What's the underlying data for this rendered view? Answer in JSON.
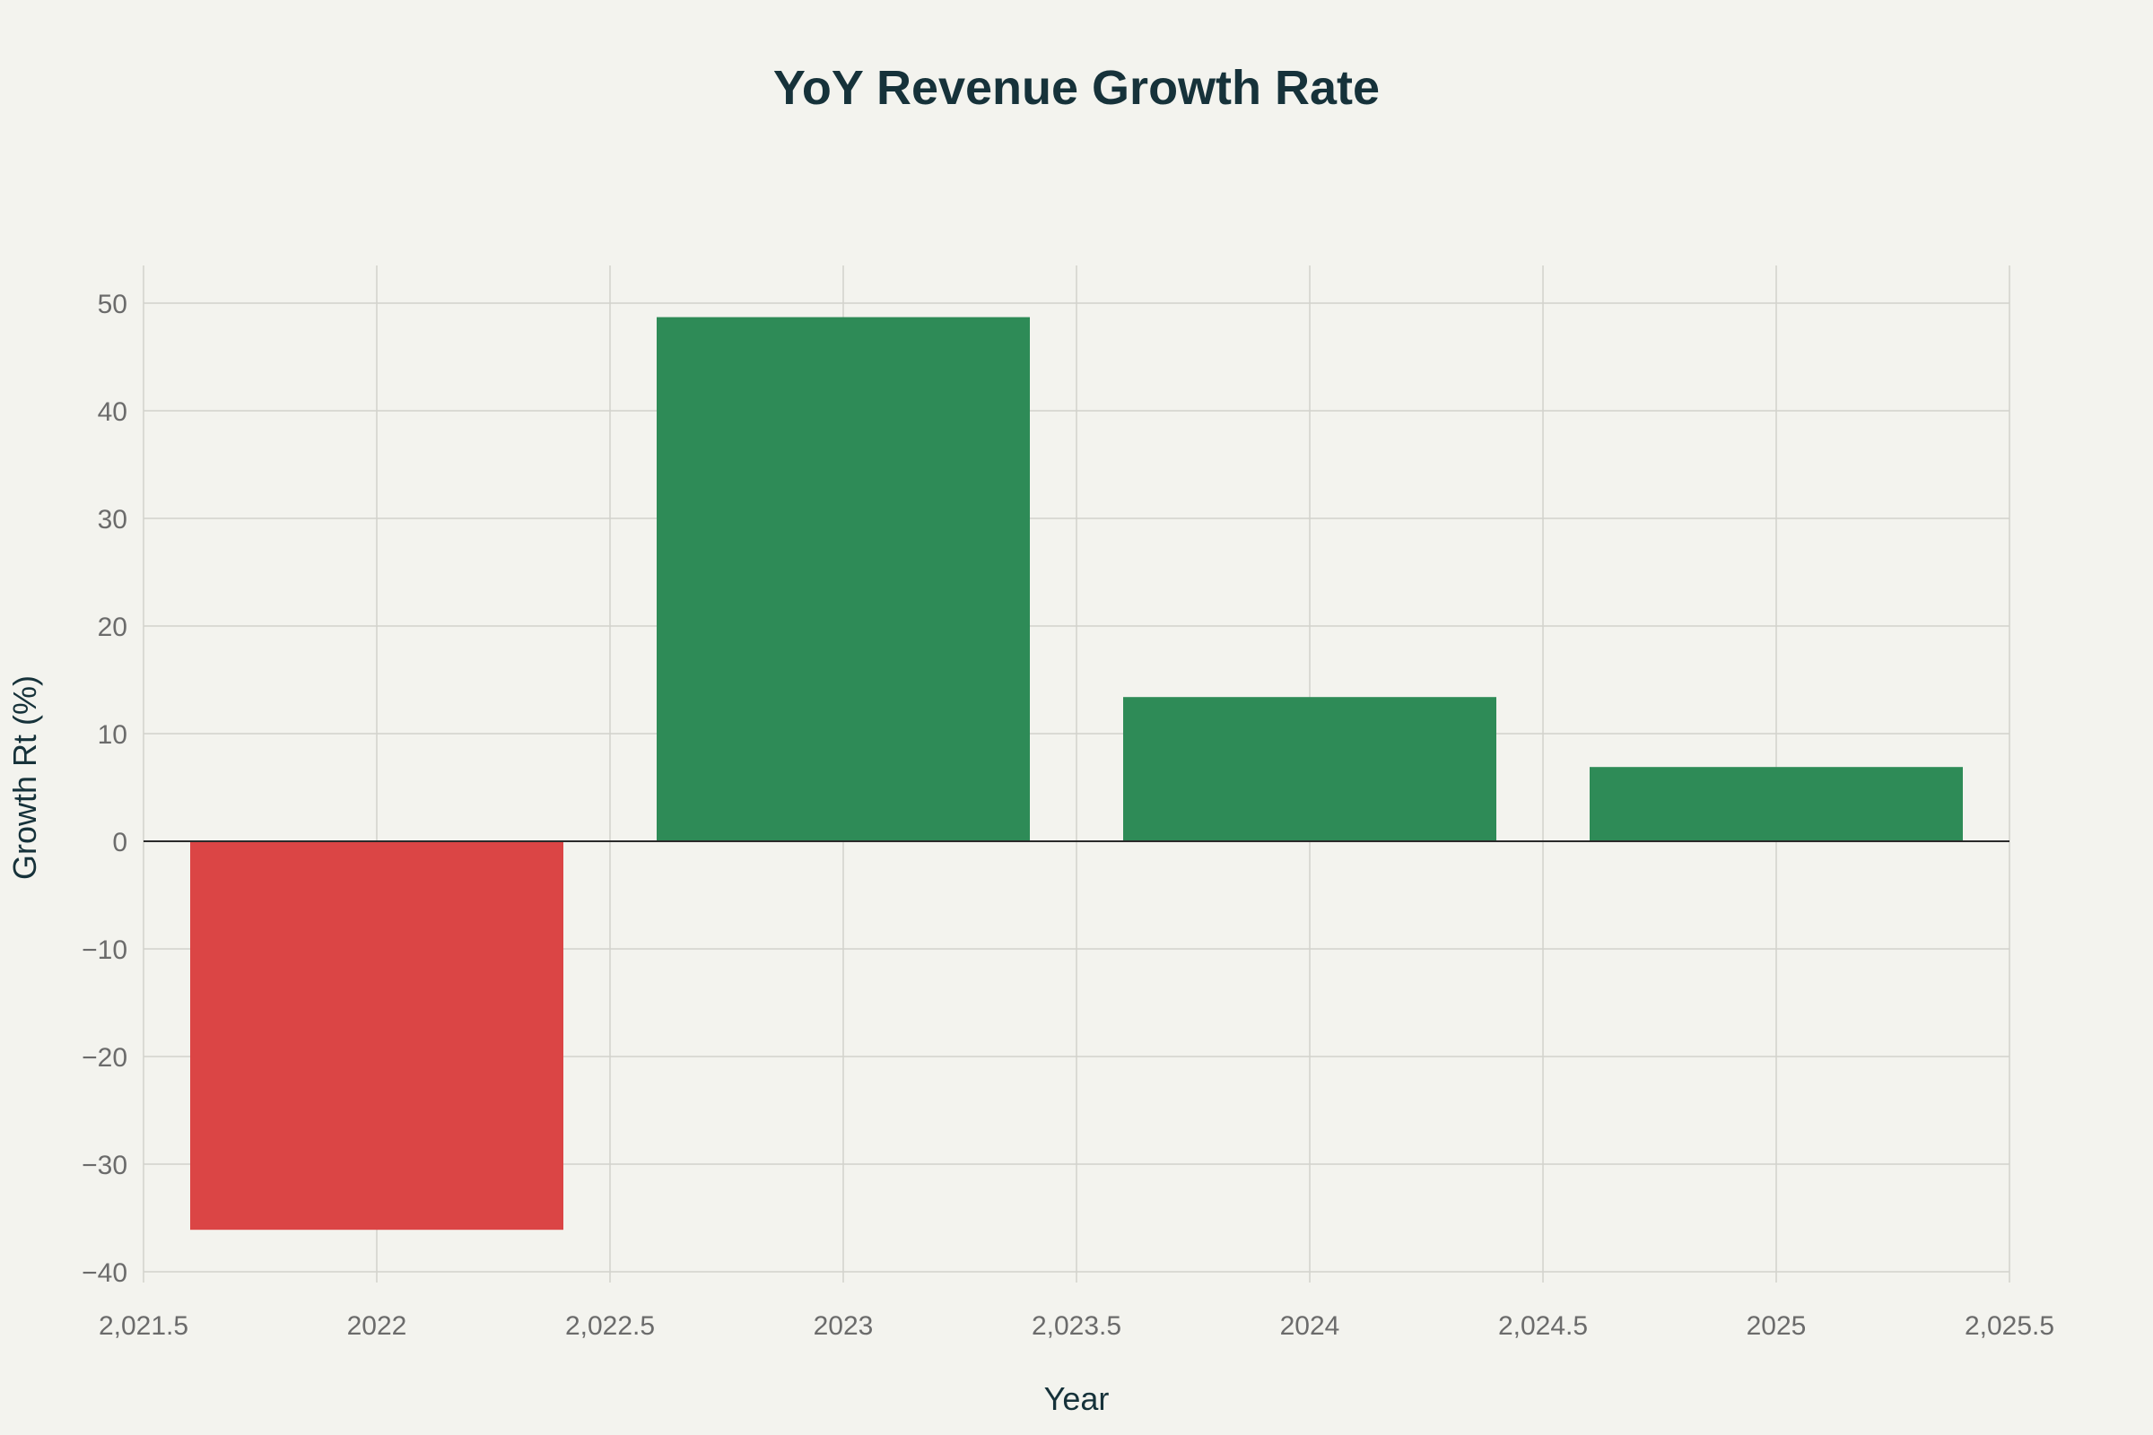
{
  "chart_data": {
    "type": "bar",
    "title": "YoY Revenue Growth Rate",
    "xlabel": "Year",
    "ylabel": "Growth Rt (%)",
    "x": [
      2022,
      2023,
      2024,
      2025
    ],
    "values": [
      -36.1,
      48.7,
      13.4,
      6.9
    ],
    "bar_width": 0.8,
    "xlim": [
      2021.5,
      2025.5
    ],
    "ylim": [
      -41,
      53.5
    ],
    "x_ticks": [
      2021.5,
      2022,
      2022.5,
      2023,
      2023.5,
      2024,
      2024.5,
      2025,
      2025.5
    ],
    "x_tick_labels": [
      "2,021.5",
      "2022",
      "2,022.5",
      "2023",
      "2,023.5",
      "2024",
      "2,024.5",
      "2025",
      "2,025.5"
    ],
    "y_ticks": [
      -40,
      -30,
      -20,
      -10,
      0,
      10,
      20,
      30,
      40,
      50
    ],
    "y_tick_labels": [
      "−40",
      "−30",
      "−20",
      "−10",
      "0",
      "10",
      "20",
      "30",
      "40",
      "50"
    ],
    "grid": true,
    "colors": {
      "positive": "#2e8b57",
      "negative": "#db4545",
      "background": "#f3f3ee"
    }
  }
}
